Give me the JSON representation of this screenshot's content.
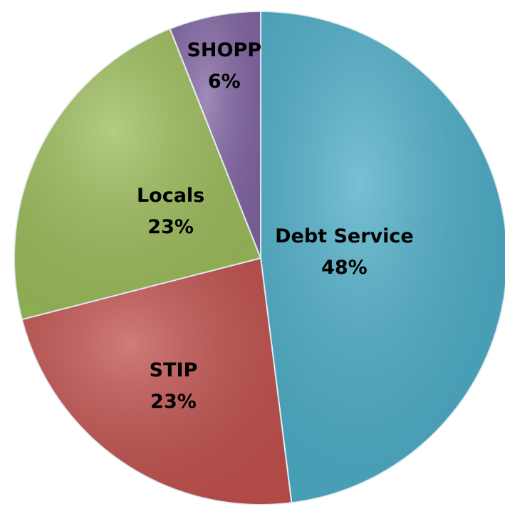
{
  "chart_data": {
    "type": "pie",
    "categories": [
      "Debt Service",
      "STIP",
      "Locals",
      "SHOPP"
    ],
    "values": [
      48,
      23,
      23,
      6
    ],
    "value_labels": [
      "48%",
      "23%",
      "23%",
      "6%"
    ],
    "colors": [
      "#4bacc6",
      "#c0504d",
      "#9bbb59",
      "#8064a2"
    ]
  }
}
